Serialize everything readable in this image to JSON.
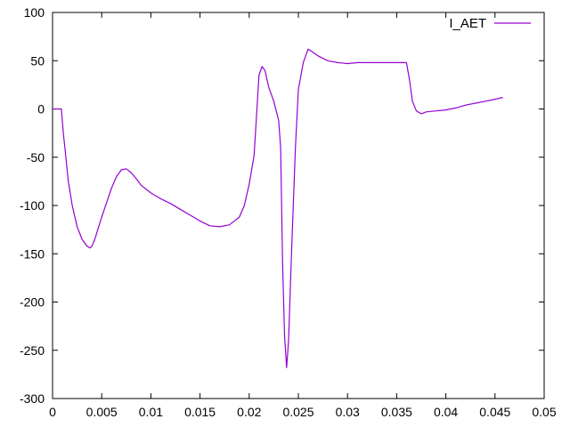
{
  "chart_data": {
    "type": "line",
    "title": "",
    "xlabel": "",
    "ylabel": "",
    "xlim": [
      0,
      0.05
    ],
    "ylim": [
      -300,
      100
    ],
    "x_ticks": [
      0,
      0.005,
      0.01,
      0.015,
      0.02,
      0.025,
      0.03,
      0.035,
      0.04,
      0.045,
      0.05
    ],
    "x_tick_labels": [
      "0",
      "0.005",
      "0.01",
      "0.015",
      "0.02",
      "0.025",
      "0.03",
      "0.035",
      "0.04",
      "0.045",
      "0.05"
    ],
    "y_ticks": [
      100,
      50,
      0,
      -50,
      -100,
      -150,
      -200,
      -250,
      -300
    ],
    "y_tick_labels": [
      "100",
      "50",
      "0",
      "-50",
      "-100",
      "-150",
      "-200",
      "-250",
      "-300"
    ],
    "grid": false,
    "legend_position": "top-right",
    "series": [
      {
        "name": "I_AET",
        "color": "#9400d3",
        "x": [
          0,
          0.0005,
          0.0009,
          0.0011,
          0.0013,
          0.0016,
          0.002,
          0.0025,
          0.003,
          0.0035,
          0.0038,
          0.004,
          0.0043,
          0.0046,
          0.005,
          0.0055,
          0.006,
          0.0065,
          0.007,
          0.0075,
          0.008,
          0.0085,
          0.009,
          0.01,
          0.011,
          0.012,
          0.013,
          0.014,
          0.015,
          0.016,
          0.017,
          0.018,
          0.019,
          0.0195,
          0.02,
          0.0205,
          0.021,
          0.0213,
          0.0216,
          0.022,
          0.0225,
          0.023,
          0.0232,
          0.0234,
          0.0236,
          0.0238,
          0.024,
          0.0243,
          0.0247,
          0.025,
          0.0255,
          0.026,
          0.0263,
          0.027,
          0.028,
          0.029,
          0.03,
          0.031,
          0.032,
          0.033,
          0.034,
          0.035,
          0.036,
          0.0363,
          0.0366,
          0.037,
          0.0375,
          0.038,
          0.039,
          0.04,
          0.041,
          0.042,
          0.043,
          0.044,
          0.045,
          0.0458
        ],
        "y": [
          0,
          0,
          0,
          -25,
          -45,
          -75,
          -100,
          -122,
          -135,
          -142,
          -144,
          -142,
          -135,
          -125,
          -112,
          -97,
          -82,
          -70,
          -63,
          -62,
          -66,
          -72,
          -79,
          -87,
          -93,
          -98,
          -104,
          -110,
          -116,
          -121,
          -122,
          -120,
          -112,
          -100,
          -78,
          -48,
          35,
          44,
          40,
          22,
          8,
          -12,
          -40,
          -160,
          -235,
          -268,
          -240,
          -150,
          -40,
          20,
          48,
          62,
          60,
          55,
          50,
          48,
          47,
          48,
          48,
          48,
          48,
          48,
          48,
          30,
          8,
          -2,
          -5,
          -3,
          -2,
          -1,
          1,
          4,
          6,
          8,
          10,
          12
        ]
      }
    ]
  }
}
